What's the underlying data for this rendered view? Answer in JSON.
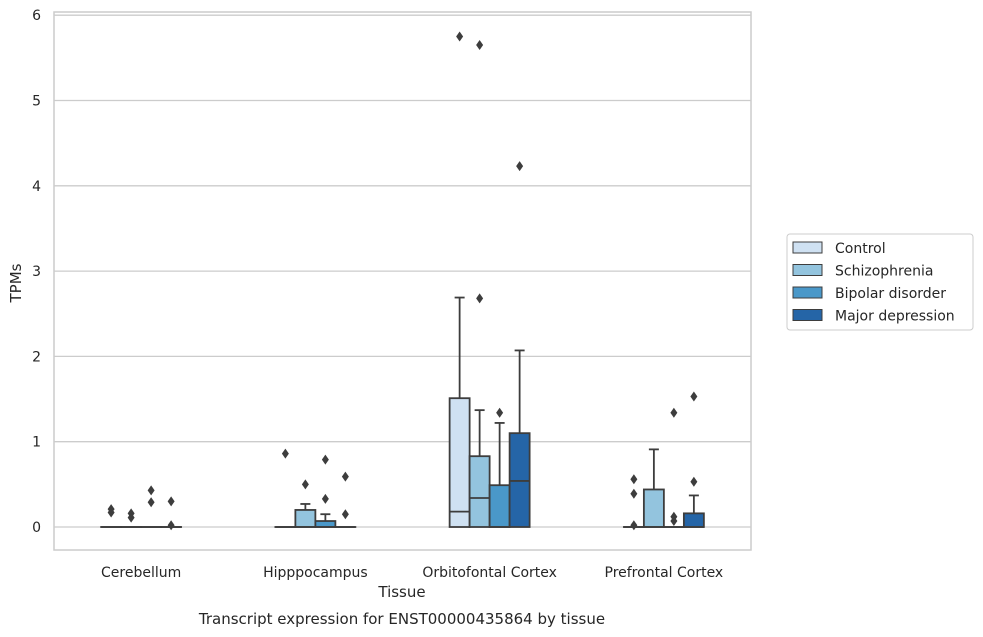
{
  "chart_data": {
    "type": "box",
    "title": "",
    "xlabel": "Tissue",
    "ylabel": "TPMs",
    "caption": "Transcript expression for ENST00000435864 by tissue",
    "ylim": [
      -0.27,
      6.05
    ],
    "yticks": [
      0,
      1,
      2,
      3,
      4,
      5,
      6
    ],
    "grid": "horizontal",
    "legend_position": "right",
    "categories": [
      "Cerebellum",
      "Hipppocampus",
      "Orbitofontal Cortex",
      "Prefrontal Cortex"
    ],
    "series": [
      {
        "name": "Control",
        "color": "#cfe1f2",
        "boxes": [
          {
            "q1": 0,
            "median": 0,
            "q3": 0,
            "whisker_low": 0,
            "whisker_high": 0,
            "outliers": [
              0.17,
              0.21
            ]
          },
          {
            "q1": 0,
            "median": 0,
            "q3": 0,
            "whisker_low": 0,
            "whisker_high": 0,
            "outliers": [
              0.86
            ]
          },
          {
            "q1": 0,
            "median": 0.18,
            "q3": 1.51,
            "whisker_low": 0,
            "whisker_high": 2.69,
            "outliers": [
              5.75
            ]
          },
          {
            "q1": 0,
            "median": 0,
            "q3": 0,
            "whisker_low": 0,
            "whisker_high": 0,
            "outliers": [
              0.02,
              0.39,
              0.56
            ]
          }
        ]
      },
      {
        "name": "Schizophrenia",
        "color": "#93c4de",
        "boxes": [
          {
            "q1": 0,
            "median": 0,
            "q3": 0,
            "whisker_low": 0,
            "whisker_high": 0,
            "outliers": [
              0.11,
              0.16
            ]
          },
          {
            "q1": 0,
            "median": 0,
            "q3": 0.2,
            "whisker_low": 0,
            "whisker_high": 0.27,
            "outliers": [
              0.5
            ]
          },
          {
            "q1": 0,
            "median": 0.34,
            "q3": 0.83,
            "whisker_low": 0,
            "whisker_high": 1.37,
            "outliers": [
              2.68,
              5.65
            ]
          },
          {
            "q1": 0,
            "median": 0,
            "q3": 0.44,
            "whisker_low": 0,
            "whisker_high": 0.91,
            "outliers": []
          }
        ]
      },
      {
        "name": "Bipolar disorder",
        "color": "#4a98c9",
        "boxes": [
          {
            "q1": 0,
            "median": 0,
            "q3": 0,
            "whisker_low": 0,
            "whisker_high": 0,
            "outliers": [
              0.29,
              0.43
            ]
          },
          {
            "q1": 0,
            "median": 0,
            "q3": 0.07,
            "whisker_low": 0,
            "whisker_high": 0.15,
            "outliers": [
              0.33,
              0.79
            ]
          },
          {
            "q1": 0,
            "median": 0,
            "q3": 0.49,
            "whisker_low": 0,
            "whisker_high": 1.22,
            "outliers": [
              1.34
            ]
          },
          {
            "q1": 0,
            "median": 0,
            "q3": 0,
            "whisker_low": 0,
            "whisker_high": 0,
            "outliers": [
              0.07,
              0.12,
              1.34
            ]
          }
        ]
      },
      {
        "name": "Major depression",
        "color": "#2565a7",
        "boxes": [
          {
            "q1": 0,
            "median": 0,
            "q3": 0,
            "whisker_low": 0,
            "whisker_high": 0,
            "outliers": [
              0.02,
              0.3
            ]
          },
          {
            "q1": 0,
            "median": 0,
            "q3": 0,
            "whisker_low": 0,
            "whisker_high": 0,
            "outliers": [
              0.15,
              0.59
            ]
          },
          {
            "q1": 0,
            "median": 0.54,
            "q3": 1.1,
            "whisker_low": 0,
            "whisker_high": 2.07,
            "outliers": [
              4.23
            ]
          },
          {
            "q1": 0,
            "median": 0,
            "q3": 0.16,
            "whisker_low": 0,
            "whisker_high": 0.37,
            "outliers": [
              0.53,
              1.53
            ]
          }
        ]
      }
    ]
  }
}
